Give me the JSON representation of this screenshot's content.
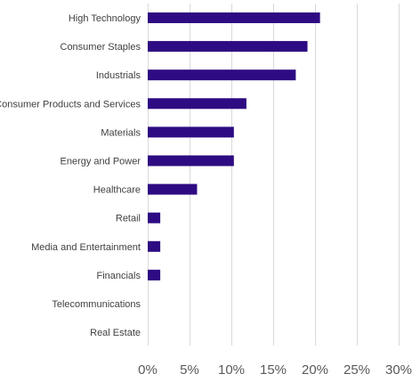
{
  "chart_data": {
    "type": "bar",
    "orientation": "horizontal",
    "categories": [
      "High Technology",
      "Consumer Staples",
      "Industrials",
      "Consumer Products and Services",
      "Materials",
      "Energy and Power",
      "Healthcare",
      "Retail",
      "Media and Entertainment",
      "Financials",
      "Telecommunications",
      "Real Estate"
    ],
    "values": [
      20.6,
      19.1,
      17.7,
      11.8,
      10.3,
      10.3,
      5.9,
      1.5,
      1.5,
      1.5,
      0,
      0
    ],
    "xlim": [
      0,
      30
    ],
    "x_ticks": [
      0,
      5,
      10,
      15,
      20,
      25,
      30
    ],
    "x_tick_labels": [
      "0%",
      "5%",
      "10%",
      "15%",
      "20%",
      "25%",
      "30%"
    ],
    "title": "",
    "xlabel": "",
    "ylabel": "",
    "grid": "vertical",
    "legend": "none",
    "bar_color": "#2e0b82"
  }
}
